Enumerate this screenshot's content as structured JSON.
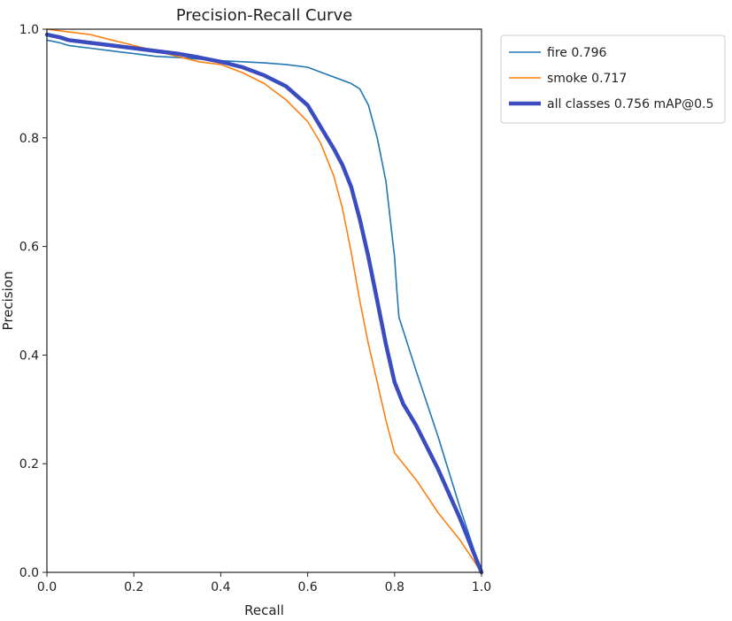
{
  "chart_data": {
    "type": "line",
    "title": "Precision-Recall Curve",
    "xlabel": "Recall",
    "ylabel": "Precision",
    "xlim": [
      0,
      1
    ],
    "ylim": [
      0,
      1
    ],
    "x_ticks": [
      "0.0",
      "0.2",
      "0.4",
      "0.6",
      "0.8",
      "1.0"
    ],
    "y_ticks": [
      "0.0",
      "0.2",
      "0.4",
      "0.6",
      "0.8",
      "1.0"
    ],
    "grid": false,
    "legend_position": "outside-top-right",
    "series": [
      {
        "name": "fire 0.796",
        "color": "#1f77b4",
        "line_weight": "thin",
        "x": [
          0.0,
          0.03,
          0.05,
          0.1,
          0.15,
          0.2,
          0.25,
          0.3,
          0.35,
          0.4,
          0.45,
          0.5,
          0.55,
          0.6,
          0.65,
          0.7,
          0.72,
          0.74,
          0.76,
          0.78,
          0.79,
          0.8,
          0.805,
          0.81,
          0.85,
          0.9,
          0.95,
          1.0
        ],
        "y": [
          0.98,
          0.975,
          0.97,
          0.965,
          0.96,
          0.955,
          0.95,
          0.948,
          0.945,
          0.942,
          0.94,
          0.938,
          0.935,
          0.93,
          0.915,
          0.9,
          0.89,
          0.86,
          0.8,
          0.72,
          0.65,
          0.58,
          0.52,
          0.47,
          0.37,
          0.25,
          0.12,
          0.0
        ]
      },
      {
        "name": "smoke 0.717",
        "color": "#ff7f0e",
        "line_weight": "thin",
        "x": [
          0.0,
          0.05,
          0.1,
          0.15,
          0.2,
          0.25,
          0.3,
          0.35,
          0.4,
          0.45,
          0.5,
          0.55,
          0.6,
          0.63,
          0.66,
          0.68,
          0.7,
          0.72,
          0.74,
          0.76,
          0.78,
          0.8,
          0.81,
          0.85,
          0.9,
          0.95,
          1.0
        ],
        "y": [
          1.0,
          0.995,
          0.99,
          0.98,
          0.97,
          0.96,
          0.95,
          0.94,
          0.935,
          0.92,
          0.9,
          0.87,
          0.83,
          0.79,
          0.73,
          0.67,
          0.59,
          0.5,
          0.42,
          0.35,
          0.28,
          0.22,
          0.21,
          0.17,
          0.11,
          0.06,
          0.0
        ]
      },
      {
        "name": "all classes 0.756 mAP@0.5",
        "color": "#3b4cc0",
        "line_weight": "thick",
        "x": [
          0.0,
          0.03,
          0.05,
          0.1,
          0.15,
          0.2,
          0.25,
          0.3,
          0.35,
          0.4,
          0.45,
          0.5,
          0.55,
          0.6,
          0.63,
          0.66,
          0.68,
          0.7,
          0.72,
          0.74,
          0.76,
          0.78,
          0.8,
          0.82,
          0.85,
          0.9,
          0.95,
          1.0
        ],
        "y": [
          0.99,
          0.985,
          0.98,
          0.975,
          0.97,
          0.965,
          0.96,
          0.955,
          0.948,
          0.94,
          0.93,
          0.915,
          0.895,
          0.86,
          0.82,
          0.78,
          0.75,
          0.71,
          0.65,
          0.58,
          0.5,
          0.42,
          0.35,
          0.31,
          0.27,
          0.19,
          0.1,
          0.0
        ]
      }
    ]
  }
}
